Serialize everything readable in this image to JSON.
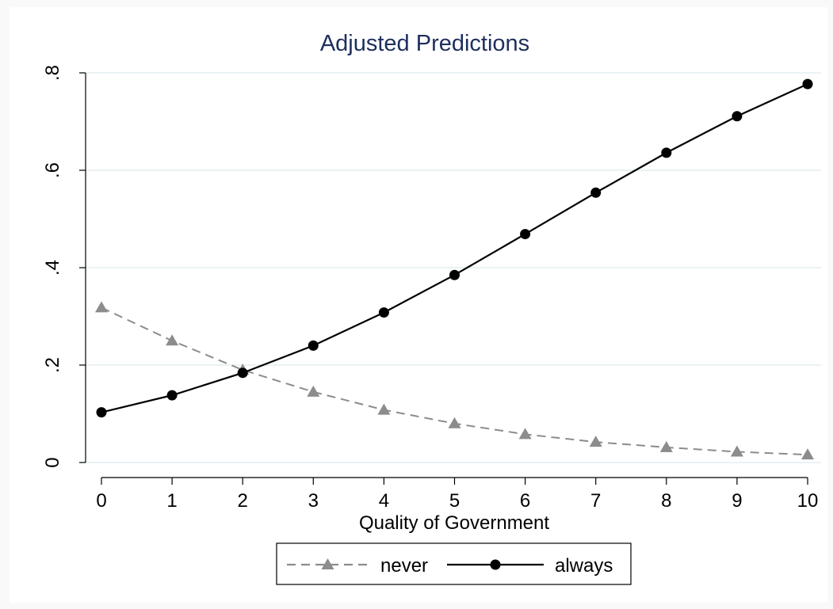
{
  "chart_data": {
    "type": "line",
    "title": "Adjusted Predictions",
    "xlabel": "Quality of Government",
    "ylabel": "",
    "x": [
      0,
      1,
      2,
      3,
      4,
      5,
      6,
      7,
      8,
      9,
      10
    ],
    "xticks": [
      "0",
      "1",
      "2",
      "3",
      "4",
      "5",
      "6",
      "7",
      "8",
      "9",
      "10"
    ],
    "yticks": [
      {
        "value": 0,
        "label": "0"
      },
      {
        "value": 0.2,
        "label": ".2"
      },
      {
        "value": 0.4,
        "label": ".4"
      },
      {
        "value": 0.6,
        "label": ".6"
      },
      {
        "value": 0.8,
        "label": ".8"
      }
    ],
    "xlim": [
      0,
      10
    ],
    "ylim": [
      0,
      0.8
    ],
    "grid": true,
    "legend_position": "bottom",
    "series": [
      {
        "name": "never",
        "values": [
          0.318,
          0.25,
          0.19,
          0.145,
          0.108,
          0.08,
          0.058,
          0.042,
          0.031,
          0.022,
          0.016
        ],
        "color": "#8c8c8c",
        "line": "dashed",
        "marker": "triangle"
      },
      {
        "name": "always",
        "values": [
          0.103,
          0.138,
          0.184,
          0.24,
          0.308,
          0.385,
          0.469,
          0.554,
          0.636,
          0.711,
          0.777
        ],
        "color": "#000000",
        "line": "solid",
        "marker": "circle"
      }
    ],
    "colors": {
      "title": "#1e2e5e",
      "grid": "#e4eef0",
      "figure_background": "#f9f9f9",
      "plot_background": "#ffffff"
    }
  }
}
